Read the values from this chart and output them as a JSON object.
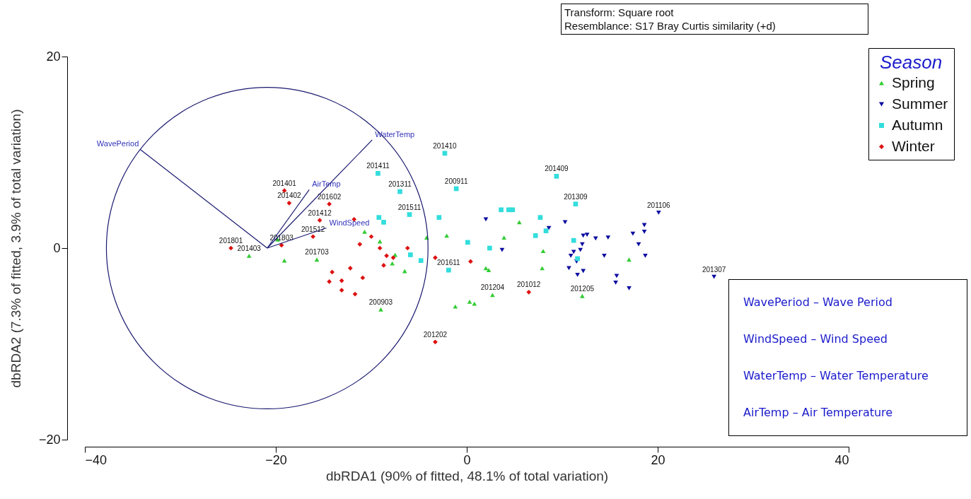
{
  "chart_data": {
    "type": "scatter",
    "xlabel": "dbRDA1 (90% of fitted, 48.1% of total variation)",
    "ylabel": "dbRDA2 (7.3% of fitted, 3.9% of total variation)",
    "legend_title": "Season",
    "legend": "top right",
    "xlim": [
      -40,
      40
    ],
    "xticks": [
      -40,
      -20,
      0,
      20,
      40
    ],
    "ylim": [
      -20,
      20
    ],
    "yticks": [
      -20,
      0,
      20
    ],
    "annotations": [
      "Transform: Square root",
      "Resemblance: S17 Bray Curtis similarity (+d)",
      "WavePeriod – Wave Period",
      "WindSpeed – Wind Speed",
      "WaterTemp – Water Temperature",
      "AirTemp – Air Temperature",
      {
        "text": "201403",
        "x": -22.8,
        "y": -0.8
      },
      {
        "text": "201703",
        "x": -15.7,
        "y": -1.2
      },
      {
        "text": "200903",
        "x": -9.0,
        "y": -6.4
      },
      {
        "text": "201204",
        "x": 2.7,
        "y": -4.9
      },
      {
        "text": "201205",
        "x": 12.1,
        "y": -5.0
      },
      {
        "text": "201106",
        "x": 20.1,
        "y": 3.7
      },
      {
        "text": "201307",
        "x": 25.9,
        "y": -3.0
      },
      {
        "text": "201411",
        "x": -9.3,
        "y": 7.8
      },
      {
        "text": "201311",
        "x": -7.0,
        "y": 5.9
      },
      {
        "text": "201511",
        "x": -6.0,
        "y": 3.5
      },
      {
        "text": "201410",
        "x": -2.3,
        "y": 9.9
      },
      {
        "text": "200911",
        "x": -1.1,
        "y": 6.2
      },
      {
        "text": "201611",
        "x": -1.9,
        "y": -2.3
      },
      {
        "text": "201409",
        "x": 9.4,
        "y": 7.5
      },
      {
        "text": "201309",
        "x": 11.4,
        "y": 4.6
      },
      {
        "text": "201801",
        "x": -24.7,
        "y": 0.0
      },
      {
        "text": "201401",
        "x": -19.1,
        "y": 6.0
      },
      {
        "text": "201402",
        "x": -18.6,
        "y": 4.7
      },
      {
        "text": "201803",
        "x": -19.4,
        "y": 0.3
      },
      {
        "text": "201512",
        "x": -16.1,
        "y": 1.2
      },
      {
        "text": "201412",
        "x": -15.4,
        "y": 2.9
      },
      {
        "text": "201602",
        "x": -14.4,
        "y": 4.6
      },
      {
        "text": "201202",
        "x": -3.3,
        "y": -9.8
      },
      {
        "text": "201012",
        "x": 6.5,
        "y": -4.6
      }
    ],
    "series": [
      {
        "name": "Spring",
        "marker": "triangle",
        "color": "#33cc33",
        "x": [
          -22.8,
          -19.8,
          -19.1,
          -15.7,
          -10.7,
          -9.1,
          -7.5,
          -7.8,
          -6.5,
          -9.0,
          -4.2,
          -2.1,
          -1.2,
          0.3,
          0.8,
          2.7,
          2.0,
          2.3,
          3.9,
          5.5,
          8.0,
          7.9,
          12.1,
          17.0
        ],
        "values": [
          -0.8,
          0.9,
          -1.3,
          -1.2,
          1.7,
          0.7,
          -0.7,
          -1.6,
          -2.4,
          -6.4,
          1.1,
          1.3,
          -6.1,
          -5.6,
          -5.8,
          -4.9,
          -2.1,
          -2.3,
          1.1,
          2.7,
          -0.3,
          -2.1,
          -5.0,
          -1.2
        ]
      },
      {
        "name": "Summer",
        "marker": "triangle-down",
        "color": "#0a0aa0",
        "x": [
          2.0,
          3.7,
          8.6,
          10.3,
          10.7,
          10.9,
          11.2,
          11.5,
          11.6,
          11.9,
          12.1,
          12.2,
          12.2,
          12.6,
          13.5,
          14.4,
          14.8,
          15.6,
          15.7,
          17.0,
          17.4,
          18.0,
          18.6,
          18.6,
          18.7,
          20.1,
          25.9
        ],
        "values": [
          3.0,
          -0.2,
          2.1,
          2.7,
          -2.1,
          -0.8,
          -0.4,
          -1.4,
          -2.8,
          -0.2,
          0.4,
          -2.4,
          1.3,
          1.4,
          1.0,
          -0.8,
          1.1,
          -3.6,
          -2.9,
          -4.2,
          1.5,
          0.4,
          1.7,
          2.4,
          -0.8,
          3.7,
          -3.0
        ]
      },
      {
        "name": "Autumn",
        "marker": "square",
        "color": "#33dddd",
        "x": [
          -9.3,
          -7.0,
          -6.0,
          -9.2,
          -8.7,
          -5.9,
          -4.8,
          -2.9,
          -2.3,
          -1.1,
          -1.9,
          0.1,
          2.4,
          3.6,
          4.4,
          4.8,
          7.2,
          7.7,
          8.3,
          9.4,
          11.2,
          11.4,
          11.6
        ],
        "values": [
          7.8,
          5.9,
          3.5,
          3.2,
          2.7,
          -0.7,
          -1.3,
          3.2,
          9.9,
          6.2,
          -2.3,
          0.6,
          0.0,
          4.0,
          4.0,
          4.0,
          1.3,
          3.2,
          1.8,
          7.5,
          0.8,
          4.6,
          -1.1
        ]
      },
      {
        "name": "Winter",
        "marker": "diamond",
        "color": "#dd1111",
        "x": [
          -24.7,
          -19.1,
          -18.6,
          -19.4,
          -16.1,
          -15.4,
          -14.4,
          -14.4,
          -14.1,
          -13.1,
          -13.1,
          -12.2,
          -11.8,
          -11.7,
          -11.2,
          -10.9,
          -10.0,
          -9.1,
          -8.7,
          -8.4,
          -7.7,
          -6.2,
          -3.3,
          -3.3,
          0.4,
          6.5
        ],
        "values": [
          0.0,
          6.0,
          4.7,
          0.3,
          1.2,
          2.9,
          4.6,
          -3.5,
          -2.5,
          -3.4,
          -4.4,
          -2.1,
          3.0,
          -4.8,
          0.4,
          -3.1,
          1.2,
          0.0,
          -1.8,
          -0.8,
          -1.0,
          0.0,
          -1.0,
          -9.8,
          -1.4,
          -4.6
        ]
      },
      {
        "name": "WavePeriod",
        "type": "line",
        "color": "#1a1a70",
        "x": [
          -20.9,
          -34.2
        ],
        "values": [
          0,
          10.3
        ]
      },
      {
        "name": "WaterTemp",
        "type": "line",
        "color": "#1a1a70",
        "x": [
          -20.9,
          -9.9
        ],
        "values": [
          0,
          11.3
        ]
      },
      {
        "name": "AirTemp",
        "type": "line",
        "color": "#1a1a70",
        "x": [
          -20.9,
          -16.5
        ],
        "values": [
          0,
          6.1
        ]
      },
      {
        "name": "WindSpeed",
        "type": "line",
        "color": "#1a1a70",
        "x": [
          -20.9,
          -14.7
        ],
        "values": [
          0,
          2.1
        ]
      }
    ]
  }
}
